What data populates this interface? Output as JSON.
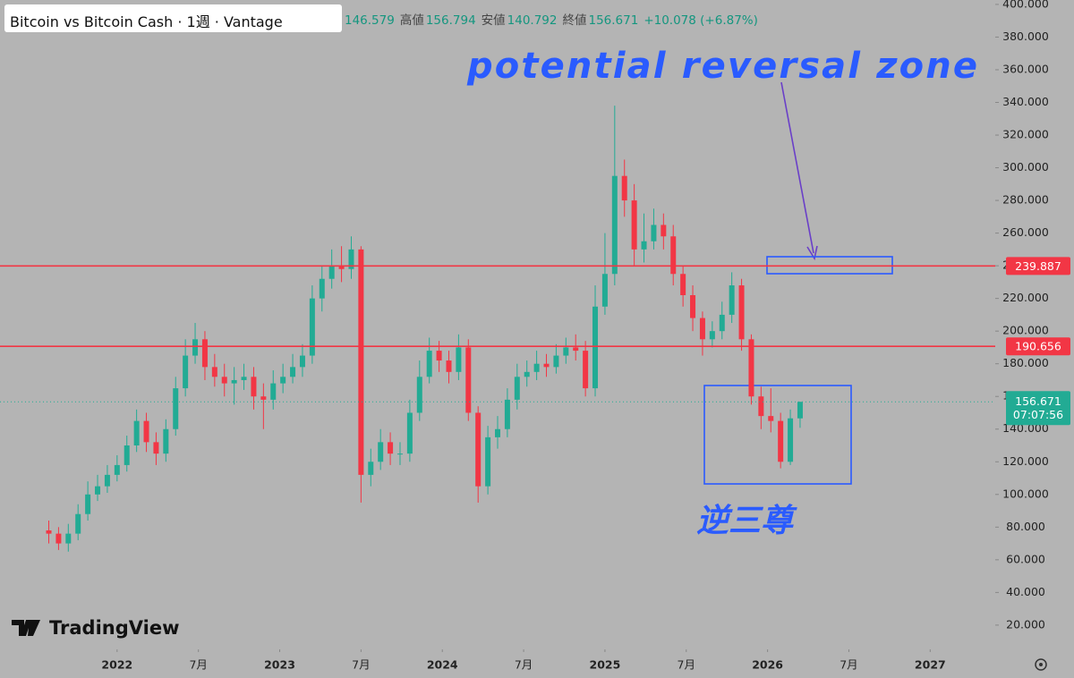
{
  "chart_data": {
    "type": "candlestick",
    "title": "Bitcoin vs Bitcoin Cash · 1週 · Vantage",
    "header": {
      "high_label": "高値",
      "low_label": "安値",
      "close_label": "終値",
      "change": "+10.078 (+6.87%)"
    },
    "countdown": "07:07:56",
    "annotations": {
      "zone_text": "potential reversal zone",
      "pattern_text": "逆三尊"
    },
    "logo": "TradingView",
    "up_color": "#22ab94",
    "down_color": "#f23645",
    "levels": [
      {
        "value": 239.887,
        "color": "#f23645"
      },
      {
        "value": 190.656,
        "color": "#f23645"
      }
    ],
    "x": [
      2021.58,
      2021.64,
      2021.7,
      2021.76,
      2021.82,
      2021.88,
      2021.94,
      2022.0,
      2022.06,
      2022.12,
      2022.18,
      2022.24,
      2022.3,
      2022.36,
      2022.42,
      2022.48,
      2022.54,
      2022.6,
      2022.66,
      2022.72,
      2022.78,
      2022.84,
      2022.9,
      2022.96,
      2023.02,
      2023.08,
      2023.14,
      2023.2,
      2023.26,
      2023.32,
      2023.38,
      2023.44,
      2023.5,
      2023.56,
      2023.62,
      2023.68,
      2023.74,
      2023.8,
      2023.86,
      2023.92,
      2023.98,
      2024.04,
      2024.1,
      2024.16,
      2024.22,
      2024.28,
      2024.34,
      2024.4,
      2024.46,
      2024.52,
      2024.58,
      2024.64,
      2024.7,
      2024.76,
      2024.82,
      2024.88,
      2024.94,
      2025.0,
      2025.06,
      2025.12,
      2025.18,
      2025.24,
      2025.3,
      2025.36,
      2025.42,
      2025.48,
      2025.54,
      2025.6,
      2025.66,
      2025.72,
      2025.78,
      2025.84,
      2025.9,
      2025.96,
      2026.02,
      2026.08,
      2026.14,
      2026.2
    ],
    "open": [
      78,
      76,
      70,
      76,
      88,
      100,
      105,
      112,
      118,
      130,
      145,
      132,
      125,
      140,
      165,
      185,
      195,
      178,
      172,
      168,
      170,
      172,
      160,
      158,
      168,
      172,
      178,
      185,
      220,
      232,
      240,
      238,
      250,
      112,
      120,
      132,
      125,
      125,
      150,
      172,
      188,
      182,
      175,
      190,
      150,
      105,
      135,
      140,
      158,
      172,
      175,
      180,
      178,
      185,
      190,
      188,
      165,
      215,
      235,
      295,
      280,
      250,
      255,
      265,
      258,
      235,
      222,
      208,
      195,
      200,
      210,
      228,
      195,
      160,
      148,
      145,
      120,
      146.579
    ],
    "high": [
      84,
      80,
      82,
      94,
      108,
      112,
      118,
      124,
      136,
      152,
      150,
      138,
      146,
      172,
      195,
      205,
      200,
      186,
      180,
      178,
      180,
      178,
      168,
      176,
      180,
      186,
      192,
      228,
      240,
      250,
      252,
      258,
      252,
      128,
      140,
      138,
      132,
      158,
      182,
      196,
      194,
      188,
      198,
      195,
      154,
      142,
      148,
      165,
      180,
      182,
      188,
      186,
      192,
      196,
      198,
      194,
      228,
      260,
      338,
      305,
      290,
      272,
      275,
      272,
      265,
      240,
      228,
      212,
      206,
      218,
      236,
      232,
      198,
      166,
      165,
      150,
      152,
      156.794
    ],
    "low": [
      70,
      66,
      65,
      72,
      84,
      96,
      101,
      108,
      114,
      126,
      126,
      118,
      120,
      136,
      160,
      180,
      170,
      166,
      160,
      155,
      164,
      152,
      140,
      152,
      162,
      168,
      172,
      180,
      212,
      226,
      230,
      232,
      95,
      105,
      115,
      118,
      118,
      120,
      145,
      168,
      175,
      168,
      170,
      145,
      95,
      100,
      128,
      135,
      152,
      166,
      170,
      172,
      174,
      180,
      182,
      160,
      160,
      210,
      228,
      270,
      240,
      242,
      250,
      250,
      228,
      215,
      200,
      185,
      190,
      195,
      205,
      188,
      155,
      140,
      138,
      116,
      118,
      140.792
    ],
    "close": [
      76,
      70,
      76,
      88,
      100,
      105,
      112,
      118,
      130,
      145,
      132,
      125,
      140,
      165,
      185,
      195,
      178,
      172,
      168,
      170,
      172,
      160,
      158,
      168,
      172,
      178,
      185,
      220,
      232,
      240,
      238,
      250,
      112,
      120,
      132,
      125,
      125,
      150,
      172,
      188,
      182,
      175,
      190,
      150,
      105,
      135,
      140,
      158,
      172,
      175,
      180,
      178,
      185,
      190,
      188,
      165,
      215,
      235,
      295,
      280,
      250,
      255,
      265,
      258,
      235,
      222,
      208,
      195,
      200,
      210,
      228,
      195,
      160,
      148,
      145,
      120,
      146.593,
      156.671
    ],
    "xlim": [
      2021.28,
      2027.4
    ],
    "ylim": [
      5.7,
      402.7
    ],
    "xticks": [
      2022,
      {
        "value": 2022.5,
        "label": "7月"
      },
      2023,
      {
        "value": 2023.5,
        "label": "7月"
      },
      2024,
      {
        "value": 2024.5,
        "label": "7月"
      },
      2025,
      {
        "value": 2025.5,
        "label": "7月"
      },
      2026,
      {
        "value": 2026.5,
        "label": "7月"
      },
      2027
    ],
    "yticks": [
      {
        "value": 20,
        "label": "20.000"
      },
      {
        "value": 40,
        "label": "40.000"
      },
      {
        "value": 60,
        "label": "60.000"
      },
      {
        "value": 80,
        "label": "80.000"
      },
      {
        "value": 100,
        "label": "100.000"
      },
      {
        "value": 120,
        "label": "120.000"
      },
      {
        "value": 140,
        "label": "140.000"
      },
      {
        "value": 160,
        "label": "160.000"
      },
      {
        "value": 180,
        "label": "180.000"
      },
      {
        "value": 200,
        "label": "200.000"
      },
      {
        "value": 220,
        "label": "220.000"
      },
      {
        "value": 240,
        "label": "240.000"
      },
      {
        "value": 260,
        "label": "260.000"
      },
      {
        "value": 280,
        "label": "280.000"
      },
      {
        "value": 300,
        "label": "300.000"
      },
      {
        "value": 320,
        "label": "320.000"
      },
      {
        "value": 340,
        "label": "340.000"
      },
      {
        "value": 360,
        "label": "360.000"
      },
      {
        "value": 380,
        "label": "380.000"
      },
      {
        "value": 400,
        "label": "400.000"
      }
    ],
    "grid": false
  }
}
